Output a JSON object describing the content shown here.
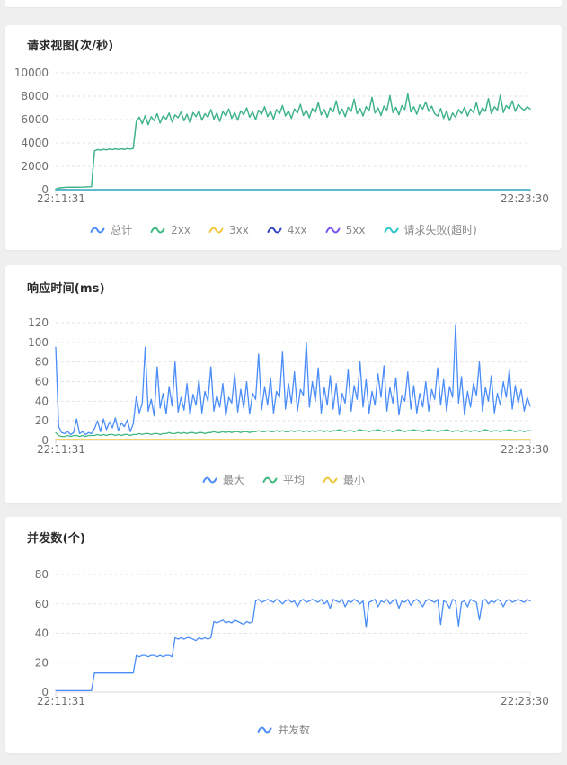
{
  "page": {
    "background": "#efefef",
    "panel_background": "#ffffff"
  },
  "colors": {
    "blue": "#4b8df8",
    "green": "#3fb77e",
    "yellow": "#f0c63c",
    "navy": "#3344c0",
    "purple": "#7a55f0",
    "teal": "#2ec7c9",
    "grid": "#e3e3e3",
    "axis": "#d9d9d9",
    "tick_text": "#6e6e6e",
    "legend_text": "#8a8a8a"
  },
  "chart_data": [
    {
      "type": "line",
      "title": "请求视图(次/秒)",
      "x_start_label": "22:11:31",
      "x_end_label": "22:23:30",
      "ylim": [
        0,
        10000
      ],
      "yticks": [
        0,
        2000,
        4000,
        6000,
        8000,
        10000
      ],
      "grid": "dashed",
      "legend_position": "bottom-center",
      "series": [
        {
          "name": "总计",
          "color": "#4b8df8",
          "same_as": "2xx"
        },
        {
          "name": "2xx",
          "color": "#3fb77e",
          "values": [
            60,
            140,
            170,
            190,
            200,
            205,
            210,
            215,
            220,
            225,
            230,
            238,
            245,
            3320,
            3430,
            3380,
            3460,
            3400,
            3480,
            3420,
            3500,
            3440,
            3490,
            3450,
            3520,
            3470,
            3530,
            5850,
            6200,
            5650,
            6350,
            5550,
            6250,
            5900,
            6500,
            5700,
            6300,
            6050,
            6550,
            5800,
            6400,
            6150,
            6650,
            5900,
            6450,
            5700,
            6600,
            6250,
            6750,
            5950,
            6500,
            6200,
            6850,
            6050,
            6550,
            5850,
            6700,
            6300,
            6900,
            6100,
            6600,
            5950,
            6750,
            6400,
            7000,
            6200,
            6650,
            6000,
            6800,
            6450,
            7100,
            6250,
            6700,
            6050,
            6850,
            6500,
            7200,
            6300,
            6750,
            6100,
            6900,
            6550,
            7300,
            6350,
            6800,
            6150,
            6950,
            6600,
            7450,
            6400,
            6850,
            6200,
            7000,
            6650,
            7600,
            6450,
            6900,
            6250,
            7050,
            6700,
            7750,
            6500,
            6950,
            6300,
            7100,
            6750,
            7900,
            6550,
            7000,
            6350,
            7150,
            6800,
            8050,
            6600,
            7050,
            6400,
            7200,
            6850,
            8200,
            6650,
            7100,
            6450,
            7250,
            6900,
            7500,
            6700,
            7150,
            6500,
            6300,
            6950,
            6100,
            6750,
            5900,
            6550,
            6200,
            6850,
            6500,
            7050,
            6300,
            6900,
            6600,
            7450,
            6400,
            7000,
            6700,
            7800,
            6500,
            7100,
            6800,
            8100,
            6600,
            7200,
            6900,
            7600,
            6700,
            7300,
            7000,
            6800,
            7100,
            6900
          ]
        },
        {
          "name": "3xx",
          "color": "#f0c63c",
          "constant": 0
        },
        {
          "name": "4xx",
          "color": "#3344c0",
          "constant": 0
        },
        {
          "name": "5xx",
          "color": "#7a55f0",
          "constant": 0
        },
        {
          "name": "请求失败(超时)",
          "color": "#2ec7c9",
          "constant": 0
        }
      ]
    },
    {
      "type": "line",
      "title": "响应时间(ms)",
      "x_start_label": "22:11:31",
      "x_end_label": "22:23:30",
      "ylim": [
        0,
        120
      ],
      "yticks": [
        0,
        20,
        40,
        60,
        80,
        100,
        120
      ],
      "grid": "dashed",
      "legend_position": "bottom-center",
      "series": [
        {
          "name": "最大",
          "color": "#4b8df8",
          "values": [
            95,
            14,
            8,
            7,
            9,
            6,
            8,
            22,
            7,
            9,
            6,
            8,
            7,
            12,
            20,
            9,
            22,
            11,
            19,
            13,
            23,
            10,
            18,
            14,
            21,
            9,
            17,
            45,
            28,
            38,
            95,
            30,
            42,
            25,
            75,
            33,
            48,
            27,
            55,
            35,
            80,
            29,
            44,
            31,
            58,
            26,
            47,
            36,
            62,
            28,
            50,
            40,
            75,
            30,
            46,
            34,
            58,
            25,
            44,
            38,
            68,
            29,
            52,
            33,
            60,
            27,
            48,
            42,
            88,
            31,
            55,
            36,
            64,
            28,
            50,
            44,
            90,
            32,
            58,
            38,
            70,
            30,
            52,
            46,
            100,
            34,
            60,
            40,
            74,
            28,
            54,
            36,
            66,
            32,
            58,
            26,
            48,
            38,
            72,
            30,
            56,
            42,
            80,
            34,
            62,
            28,
            50,
            36,
            68,
            44,
            76,
            30,
            54,
            38,
            64,
            26,
            46,
            40,
            70,
            32,
            56,
            28,
            48,
            34,
            60,
            30,
            52,
            42,
            74,
            36,
            62,
            30,
            55,
            44,
            118,
            38,
            65,
            26,
            50,
            34,
            58,
            46,
            80,
            30,
            54,
            40,
            66,
            28,
            48,
            36,
            60,
            44,
            72,
            32,
            56,
            38,
            52,
            30,
            44,
            35
          ]
        },
        {
          "name": "平均",
          "color": "#3fb77e",
          "values": [
            8,
            5,
            4,
            4,
            5,
            4,
            5,
            5,
            4,
            5,
            4,
            5,
            5,
            5,
            6,
            5,
            6,
            5,
            6,
            6,
            5,
            6,
            5,
            6,
            6,
            5,
            6,
            6,
            7,
            6,
            7,
            7,
            6,
            7,
            7,
            6,
            7,
            7,
            8,
            7,
            7,
            8,
            7,
            8,
            7,
            8,
            8,
            7,
            8,
            8,
            7,
            8,
            8,
            9,
            8,
            8,
            9,
            8,
            9,
            8,
            9,
            9,
            8,
            9,
            9,
            8,
            9,
            9,
            10,
            9,
            9,
            10,
            9,
            9,
            10,
            9,
            10,
            9,
            9,
            10,
            9,
            10,
            10,
            9,
            10,
            9,
            10,
            9,
            10,
            10,
            9,
            10,
            9,
            10,
            10,
            11,
            10,
            9,
            10,
            10,
            9,
            10,
            11,
            10,
            10,
            9,
            10,
            10,
            11,
            10,
            9,
            10,
            10,
            9,
            10,
            11,
            10,
            9,
            10,
            10,
            11,
            10,
            10,
            9,
            10,
            11,
            10,
            10,
            9,
            10,
            10,
            11,
            10,
            9,
            10,
            10,
            9,
            10,
            10,
            9,
            10,
            10,
            9,
            10,
            11,
            10,
            9,
            10,
            10,
            9,
            10,
            10,
            11,
            10,
            9,
            10,
            10,
            9,
            10,
            10
          ]
        },
        {
          "name": "最小",
          "color": "#f0c63c",
          "constant": 1
        }
      ]
    },
    {
      "type": "line",
      "title": "并发数(个)",
      "x_start_label": "22:11:31",
      "x_end_label": "22:23:30",
      "ylim": [
        0,
        80
      ],
      "yticks": [
        0,
        20,
        40,
        60,
        80
      ],
      "grid": "dashed",
      "legend_position": "bottom-center",
      "series": [
        {
          "name": "并发数",
          "color": "#4b8df8",
          "values": [
            1,
            1,
            1,
            1,
            1,
            1,
            1,
            1,
            1,
            1,
            1,
            1,
            1,
            13,
            13,
            13,
            13,
            13,
            13,
            13,
            13,
            13,
            13,
            13,
            13,
            13,
            13,
            25,
            24,
            25,
            25,
            24,
            25,
            25,
            24,
            25,
            24,
            25,
            25,
            24,
            37,
            36,
            37,
            36,
            37,
            37,
            36,
            35,
            37,
            36,
            37,
            36,
            37,
            48,
            47,
            48,
            49,
            47,
            48,
            47,
            49,
            48,
            47,
            46,
            48,
            47,
            48,
            62,
            63,
            61,
            62,
            63,
            62,
            61,
            63,
            62,
            60,
            62,
            63,
            61,
            62,
            58,
            62,
            63,
            61,
            62,
            63,
            62,
            61,
            63,
            60,
            62,
            57,
            63,
            62,
            61,
            63,
            58,
            62,
            61,
            63,
            62,
            60,
            62,
            44,
            61,
            62,
            63,
            58,
            62,
            61,
            63,
            60,
            62,
            63,
            57,
            62,
            61,
            63,
            59,
            62,
            63,
            61,
            58,
            62,
            63,
            62,
            61,
            63,
            46,
            62,
            61,
            57,
            63,
            62,
            45,
            61,
            62,
            58,
            63,
            62,
            61,
            49,
            62,
            63,
            60,
            62,
            61,
            63,
            62,
            58,
            62,
            63,
            61,
            62,
            63,
            62,
            61,
            63,
            62
          ]
        }
      ]
    }
  ]
}
